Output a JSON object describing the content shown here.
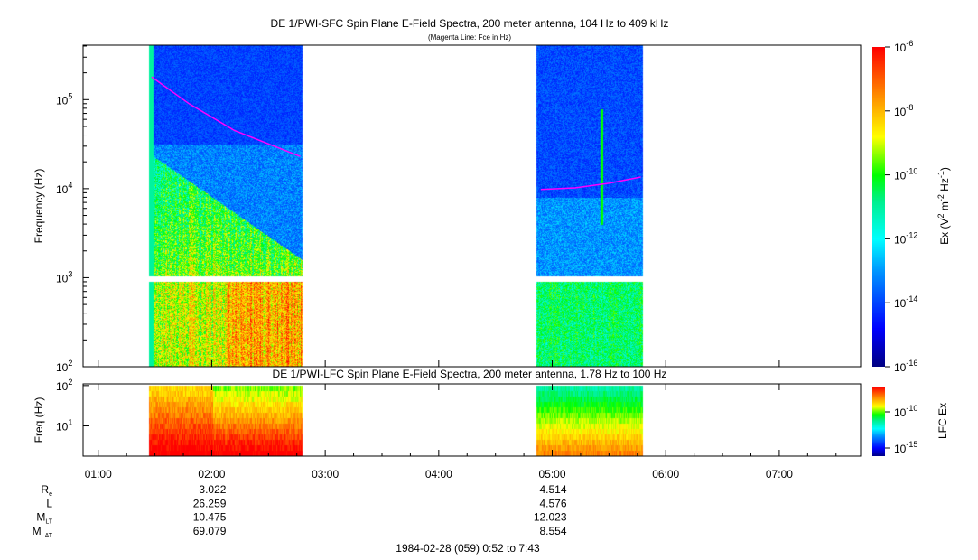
{
  "chart_data": [
    {
      "type": "heatmap",
      "title": "DE 1/PWI-SFC  Spin Plane E-Field Spectra, 200 meter antenna, 104 Hz to 409 kHz",
      "subtitle": "(Magenta Line: Fce in Hz)",
      "ylabel": "Frequency (Hz)",
      "yscale": "log",
      "ylim": [
        100,
        409000
      ],
      "yticks": [
        {
          "v": 100,
          "b": "10",
          "e": "2"
        },
        {
          "v": 1000,
          "b": "10",
          "e": "3"
        },
        {
          "v": 10000,
          "b": "10",
          "e": "4"
        },
        {
          "v": 100000,
          "b": "10",
          "e": "5"
        }
      ],
      "data_intervals_hours": [
        [
          1.45,
          2.8
        ],
        [
          4.86,
          5.8
        ]
      ],
      "colorbar": {
        "label_main": "Ex (V",
        "label_sup1": "2",
        "label_mid": " m",
        "label_sup2": "-2",
        "label_hz": " Hz",
        "label_sup3": "-1",
        "label_end": ")",
        "range": [
          -16,
          -6
        ],
        "ticks": [
          {
            "b": "10",
            "e": "-6"
          },
          {
            "b": "10",
            "e": "-8"
          },
          {
            "b": "10",
            "e": "-10"
          },
          {
            "b": "10",
            "e": "-12"
          },
          {
            "b": "10",
            "e": "-14"
          },
          {
            "b": "10",
            "e": "-16"
          }
        ]
      },
      "fce_line": {
        "color": "#ff00ff",
        "segments": [
          [
            [
              1.47,
              180000
            ],
            [
              1.8,
              90000
            ],
            [
              2.2,
              45000
            ],
            [
              2.78,
              23000
            ]
          ],
          [
            [
              4.9,
              9800
            ],
            [
              5.2,
              10200
            ],
            [
              5.5,
              11500
            ],
            [
              5.78,
              13500
            ]
          ]
        ]
      }
    },
    {
      "type": "heatmap",
      "title": "DE 1/PWI-LFC  Spin Plane E-Field Spectra, 200 meter antenna, 1.78 Hz to 100 Hz",
      "ylabel": "Freq (Hz)",
      "yscale": "log",
      "ylim": [
        1.78,
        110
      ],
      "yticks": [
        {
          "v": 10,
          "b": "10",
          "e": "1"
        },
        {
          "v": 100,
          "b": "10",
          "e": "2"
        }
      ],
      "colorbar": {
        "label": "LFC Ex",
        "range": [
          -17,
          -7
        ],
        "ticks": [
          {
            "b": "10",
            "e": "-10"
          },
          {
            "b": "10",
            "e": "-15"
          }
        ]
      }
    }
  ],
  "xaxis": {
    "ticks": [
      "01:00",
      "02:00",
      "03:00",
      "04:00",
      "05:00",
      "06:00",
      "07:00"
    ],
    "start_hour": 0.8667,
    "end_hour": 7.7167
  },
  "ephemeris": {
    "rows": [
      {
        "label": "R",
        "sub": "e",
        "values": [
          "3.022",
          "4.514"
        ]
      },
      {
        "label": "L",
        "sub": "",
        "values": [
          "26.259",
          "4.576"
        ]
      },
      {
        "label": "M",
        "sub": "LT",
        "values": [
          "10.475",
          "12.023"
        ]
      },
      {
        "label": "M",
        "sub": "LAT",
        "values": [
          "69.079",
          "8.554"
        ]
      }
    ],
    "value_hours": [
      2.0,
      5.0
    ]
  },
  "footer": "1984-02-28 (059) 0:52 to 7:43"
}
